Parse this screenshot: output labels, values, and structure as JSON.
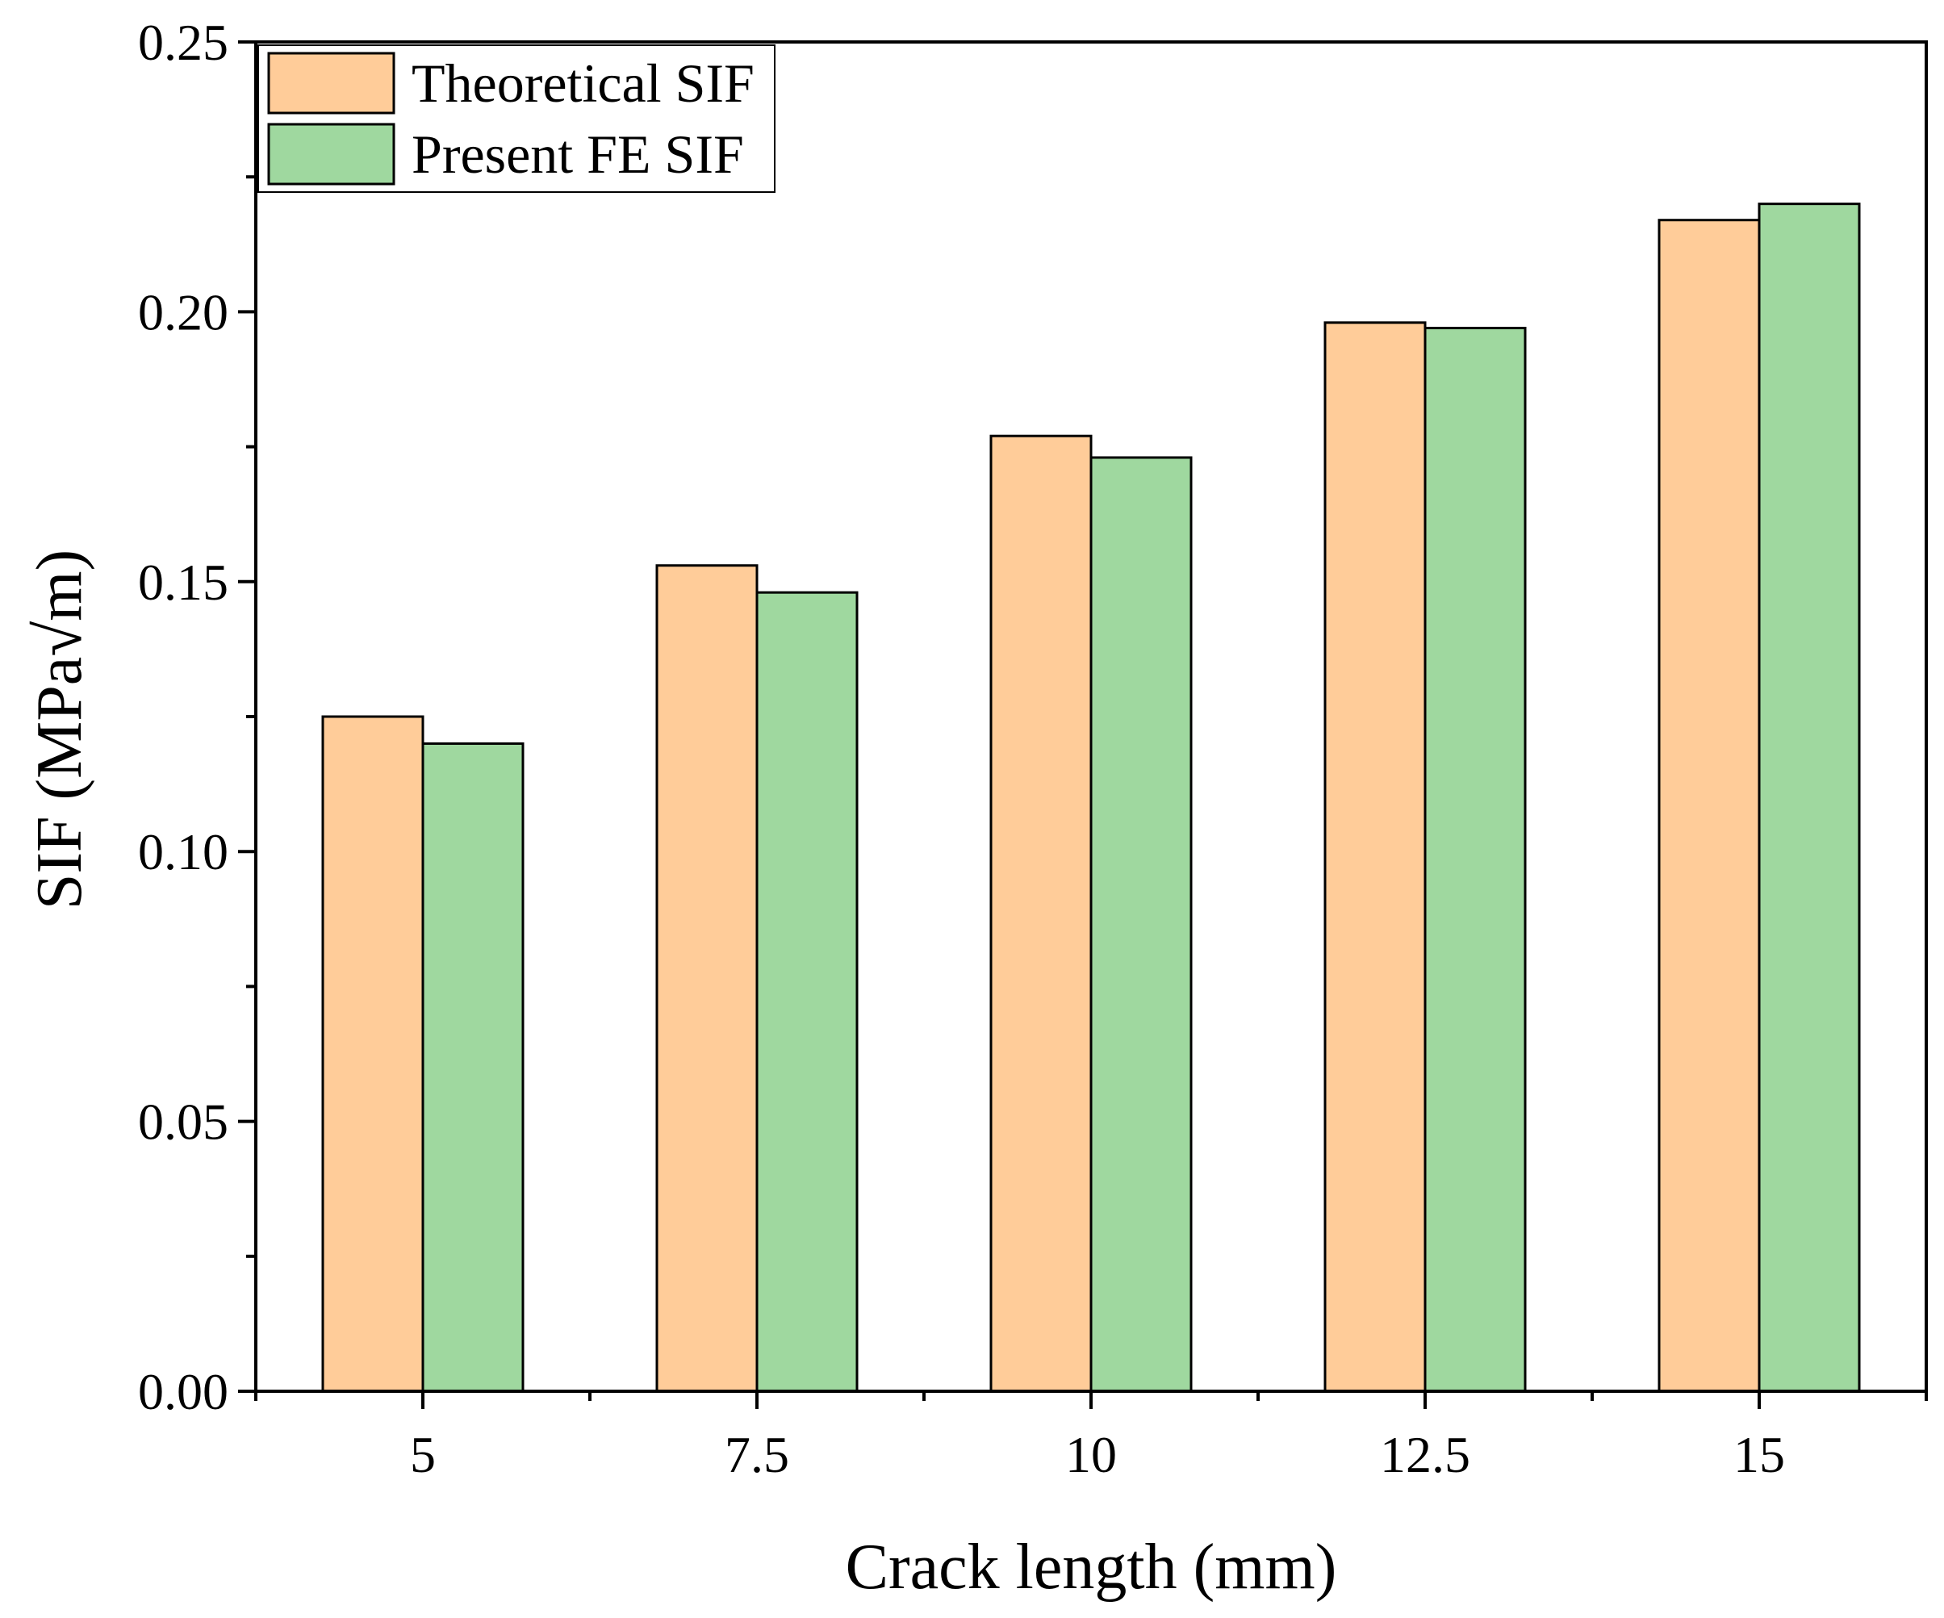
{
  "chart_data": {
    "type": "bar",
    "title": "",
    "xlabel": "Crack length (mm)",
    "ylabel": "SIF (MPa√m)",
    "categories": [
      "5",
      "7.5",
      "10",
      "12.5",
      "15"
    ],
    "series": [
      {
        "name": "Theoretical SIF",
        "color": "#FFCC99",
        "values": [
          0.125,
          0.153,
          0.177,
          0.198,
          0.217
        ]
      },
      {
        "name": "Present FE SIF",
        "color": "#9FD89F",
        "values": [
          0.12,
          0.148,
          0.173,
          0.197,
          0.22
        ]
      }
    ],
    "ylim": [
      0,
      0.25
    ],
    "yticks": [
      "0.00",
      "0.05",
      "0.10",
      "0.15",
      "0.20",
      "0.25"
    ],
    "grid": false,
    "legend_position": "top-left"
  }
}
